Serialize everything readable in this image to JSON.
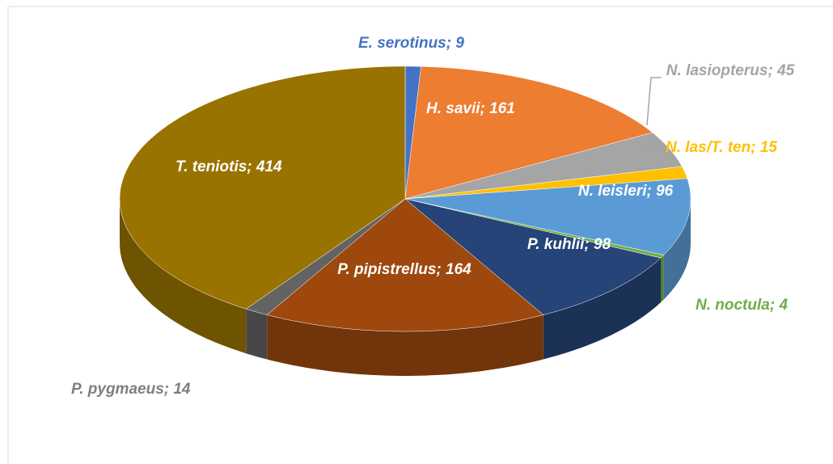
{
  "chart_data": {
    "type": "pie3d",
    "values": [
      9,
      161,
      45,
      15,
      96,
      4,
      98,
      164,
      14,
      414
    ],
    "value_labels": [
      "E. serotinus; 9",
      "H. savii; 161",
      "N. lasiopterus; 45",
      "N. las/T. ten; 15",
      "N. leisleri; 96",
      "N. noctula; 4",
      "P. kuhlii; 98",
      "P. pipistrellus; 164",
      "P. pygmaeus; 14",
      "T. teniotis; 414"
    ],
    "colors": [
      "#4472c4",
      "#ed7d31",
      "#a5a5a5",
      "#ffc000",
      "#5b9bd5",
      "#70ad47",
      "#264478",
      "#9e480e",
      "#636363",
      "#997300"
    ],
    "label_colors": [
      "#4472c4",
      "#ffffff",
      "#a5a5a5",
      "#ffc000",
      "#ffffff",
      "#70ad47",
      "#ffffff",
      "#ffffff",
      "#7f7f7f",
      "#ffffff"
    ]
  }
}
